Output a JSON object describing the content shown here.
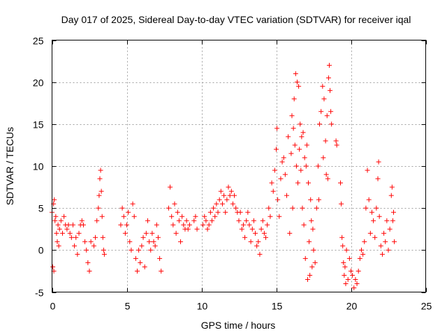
{
  "chart_data": {
    "type": "scatter",
    "title": "Day 017 of 2025, Sidereal Day-to-day VTEC variation (SDTVAR) for receiver iqal",
    "xlabel": "GPS time / hours",
    "ylabel": "SDTVAR / TECUs",
    "xlim": [
      0,
      25
    ],
    "ylim": [
      -5,
      25
    ],
    "xticks": [
      0,
      5,
      10,
      15,
      20,
      25
    ],
    "yticks": [
      -5,
      0,
      5,
      10,
      15,
      20,
      25
    ],
    "grid": true,
    "marker": "+",
    "marker_color": "#ff0000",
    "series": [
      {
        "name": "iqal",
        "points": [
          [
            0.0,
            4.5
          ],
          [
            0.05,
            -2.0
          ],
          [
            0.1,
            5.5
          ],
          [
            0.12,
            -2.5
          ],
          [
            0.15,
            6.0
          ],
          [
            0.2,
            3.5
          ],
          [
            0.25,
            4.0
          ],
          [
            0.3,
            2.0
          ],
          [
            0.35,
            1.0
          ],
          [
            0.4,
            3.0
          ],
          [
            0.45,
            0.5
          ],
          [
            0.5,
            2.5
          ],
          [
            0.6,
            3.5
          ],
          [
            0.7,
            2.0
          ],
          [
            0.8,
            4.0
          ],
          [
            0.9,
            3.0
          ],
          [
            1.0,
            2.5
          ],
          [
            1.1,
            3.0
          ],
          [
            1.2,
            2.0
          ],
          [
            1.3,
            1.5
          ],
          [
            1.4,
            3.0
          ],
          [
            1.5,
            0.5
          ],
          [
            1.6,
            1.5
          ],
          [
            1.7,
            -0.5
          ],
          [
            1.8,
            2.0
          ],
          [
            1.9,
            3.0
          ],
          [
            2.0,
            3.5
          ],
          [
            2.1,
            3.0
          ],
          [
            2.2,
            1.0
          ],
          [
            2.3,
            0.0
          ],
          [
            2.4,
            -1.5
          ],
          [
            2.5,
            -2.5
          ],
          [
            2.6,
            1.0
          ],
          [
            2.8,
            0.5
          ],
          [
            2.9,
            1.5
          ],
          [
            3.0,
            3.5
          ],
          [
            3.1,
            5.0
          ],
          [
            3.15,
            6.5
          ],
          [
            3.2,
            8.5
          ],
          [
            3.25,
            9.5
          ],
          [
            3.3,
            7.0
          ],
          [
            3.35,
            4.0
          ],
          [
            3.4,
            1.5
          ],
          [
            3.45,
            0.0
          ],
          [
            3.5,
            -0.5
          ],
          [
            4.6,
            3.0
          ],
          [
            4.7,
            5.0
          ],
          [
            4.8,
            4.0
          ],
          [
            4.9,
            2.0
          ],
          [
            5.0,
            3.0
          ],
          [
            5.1,
            4.5
          ],
          [
            5.2,
            1.0
          ],
          [
            5.3,
            0.0
          ],
          [
            5.4,
            5.5
          ],
          [
            5.5,
            4.0
          ],
          [
            5.6,
            -1.0
          ],
          [
            5.7,
            -2.5
          ],
          [
            5.8,
            0.0
          ],
          [
            5.9,
            -1.5
          ],
          [
            6.0,
            0.5
          ],
          [
            6.1,
            1.5
          ],
          [
            6.2,
            -2.0
          ],
          [
            6.3,
            2.0
          ],
          [
            6.4,
            3.5
          ],
          [
            6.5,
            1.0
          ],
          [
            6.6,
            0.0
          ],
          [
            6.7,
            2.0
          ],
          [
            6.8,
            1.0
          ],
          [
            6.9,
            0.5
          ],
          [
            7.0,
            3.0
          ],
          [
            7.1,
            1.5
          ],
          [
            7.2,
            -1.0
          ],
          [
            7.3,
            -2.5
          ],
          [
            7.8,
            5.0
          ],
          [
            7.9,
            7.5
          ],
          [
            8.0,
            4.0
          ],
          [
            8.1,
            3.0
          ],
          [
            8.2,
            5.5
          ],
          [
            8.3,
            2.0
          ],
          [
            8.4,
            4.5
          ],
          [
            8.5,
            3.5
          ],
          [
            8.6,
            1.0
          ],
          [
            8.7,
            4.0
          ],
          [
            8.8,
            3.0
          ],
          [
            8.9,
            2.5
          ],
          [
            9.0,
            3.5
          ],
          [
            9.1,
            2.5
          ],
          [
            9.2,
            3.0
          ],
          [
            9.5,
            3.5
          ],
          [
            9.6,
            4.0
          ],
          [
            9.7,
            2.5
          ],
          [
            10.1,
            3.0
          ],
          [
            10.2,
            4.0
          ],
          [
            10.3,
            3.5
          ],
          [
            10.4,
            2.5
          ],
          [
            10.5,
            3.0
          ],
          [
            10.6,
            4.5
          ],
          [
            10.7,
            3.5
          ],
          [
            10.8,
            5.0
          ],
          [
            10.9,
            4.0
          ],
          [
            11.0,
            5.5
          ],
          [
            11.1,
            4.5
          ],
          [
            11.2,
            6.0
          ],
          [
            11.3,
            7.0
          ],
          [
            11.4,
            5.5
          ],
          [
            11.5,
            6.5
          ],
          [
            11.6,
            4.5
          ],
          [
            11.7,
            6.0
          ],
          [
            11.8,
            7.5
          ],
          [
            11.9,
            6.5
          ],
          [
            12.0,
            7.0
          ],
          [
            12.1,
            5.5
          ],
          [
            12.2,
            6.5
          ],
          [
            12.3,
            5.0
          ],
          [
            12.4,
            4.5
          ],
          [
            12.5,
            3.5
          ],
          [
            12.6,
            4.5
          ],
          [
            12.7,
            2.5
          ],
          [
            12.8,
            3.0
          ],
          [
            12.9,
            1.5
          ],
          [
            13.0,
            3.5
          ],
          [
            13.1,
            4.5
          ],
          [
            13.2,
            3.0
          ],
          [
            13.3,
            1.0
          ],
          [
            13.4,
            2.5
          ],
          [
            13.5,
            3.5
          ],
          [
            13.6,
            2.0
          ],
          [
            13.7,
            0.5
          ],
          [
            13.8,
            1.0
          ],
          [
            13.9,
            -0.5
          ],
          [
            14.0,
            2.5
          ],
          [
            14.1,
            3.5
          ],
          [
            14.2,
            2.0
          ],
          [
            14.3,
            1.5
          ],
          [
            14.4,
            3.0
          ],
          [
            14.5,
            5.0
          ],
          [
            14.6,
            4.0
          ],
          [
            14.7,
            8.0
          ],
          [
            14.8,
            7.0
          ],
          [
            14.9,
            9.5
          ],
          [
            15.0,
            12.0
          ],
          [
            15.05,
            14.5
          ],
          [
            15.1,
            6.0
          ],
          [
            15.2,
            4.0
          ],
          [
            15.3,
            8.5
          ],
          [
            15.4,
            10.5
          ],
          [
            15.5,
            11.0
          ],
          [
            15.6,
            9.0
          ],
          [
            15.7,
            6.5
          ],
          [
            15.8,
            13.5
          ],
          [
            15.9,
            2.0
          ],
          [
            16.0,
            11.5
          ],
          [
            16.05,
            16.0
          ],
          [
            16.1,
            5.0
          ],
          [
            16.15,
            14.5
          ],
          [
            16.2,
            18.0
          ],
          [
            16.25,
            12.5
          ],
          [
            16.3,
            21.0
          ],
          [
            16.35,
            10.0
          ],
          [
            16.4,
            20.0
          ],
          [
            16.45,
            8.0
          ],
          [
            16.5,
            19.5
          ],
          [
            16.55,
            12.0
          ],
          [
            16.6,
            15.0
          ],
          [
            16.65,
            9.5
          ],
          [
            16.7,
            13.5
          ],
          [
            16.75,
            5.0
          ],
          [
            16.8,
            14.0
          ],
          [
            16.85,
            3.0
          ],
          [
            16.9,
            11.0
          ],
          [
            16.95,
            -1.0
          ],
          [
            17.0,
            10.0
          ],
          [
            17.05,
            12.5
          ],
          [
            17.1,
            -3.5
          ],
          [
            17.15,
            8.0
          ],
          [
            17.2,
            1.0
          ],
          [
            17.25,
            -3.0
          ],
          [
            17.3,
            6.0
          ],
          [
            17.35,
            3.5
          ],
          [
            17.4,
            -2.0
          ],
          [
            17.45,
            2.5
          ],
          [
            17.5,
            0.0
          ],
          [
            17.6,
            -1.5
          ],
          [
            17.7,
            5.0
          ],
          [
            17.8,
            10.0
          ],
          [
            17.85,
            6.0
          ],
          [
            17.9,
            15.0
          ],
          [
            18.0,
            16.5
          ],
          [
            18.1,
            19.5
          ],
          [
            18.15,
            11.0
          ],
          [
            18.2,
            18.0
          ],
          [
            18.3,
            13.0
          ],
          [
            18.35,
            9.0
          ],
          [
            18.4,
            16.0
          ],
          [
            18.45,
            8.5
          ],
          [
            18.5,
            20.5
          ],
          [
            18.55,
            22.0
          ],
          [
            18.6,
            19.0
          ],
          [
            18.65,
            16.5
          ],
          [
            18.7,
            15.0
          ],
          [
            19.0,
            13.0
          ],
          [
            19.05,
            12.5
          ],
          [
            19.3,
            8.0
          ],
          [
            19.35,
            5.5
          ],
          [
            19.4,
            1.5
          ],
          [
            19.45,
            0.5
          ],
          [
            19.5,
            -1.5
          ],
          [
            19.55,
            -3.0
          ],
          [
            19.6,
            -2.0
          ],
          [
            19.65,
            -4.0
          ],
          [
            19.7,
            0.0
          ],
          [
            19.8,
            -3.5
          ],
          [
            19.9,
            -1.0
          ],
          [
            20.0,
            -2.5
          ],
          [
            20.1,
            -3.0
          ],
          [
            20.2,
            -4.5
          ],
          [
            20.3,
            -3.5
          ],
          [
            20.4,
            -4.0
          ],
          [
            20.5,
            -2.5
          ],
          [
            20.6,
            -1.0
          ],
          [
            20.7,
            0.0
          ],
          [
            20.8,
            -0.5
          ],
          [
            20.9,
            1.0
          ],
          [
            21.0,
            5.0
          ],
          [
            21.1,
            9.5
          ],
          [
            21.2,
            6.0
          ],
          [
            21.3,
            2.0
          ],
          [
            21.4,
            4.5
          ],
          [
            21.5,
            3.5
          ],
          [
            21.6,
            1.5
          ],
          [
            21.7,
            5.0
          ],
          [
            21.8,
            8.5
          ],
          [
            21.85,
            10.5
          ],
          [
            21.9,
            4.0
          ],
          [
            22.0,
            0.5
          ],
          [
            22.1,
            -0.5
          ],
          [
            22.2,
            2.0
          ],
          [
            22.3,
            1.0
          ],
          [
            22.4,
            3.5
          ],
          [
            22.5,
            0.0
          ],
          [
            22.6,
            2.5
          ],
          [
            22.7,
            6.5
          ],
          [
            22.75,
            7.5
          ],
          [
            22.8,
            3.5
          ],
          [
            22.85,
            4.5
          ],
          [
            22.9,
            1.0
          ]
        ]
      }
    ]
  }
}
